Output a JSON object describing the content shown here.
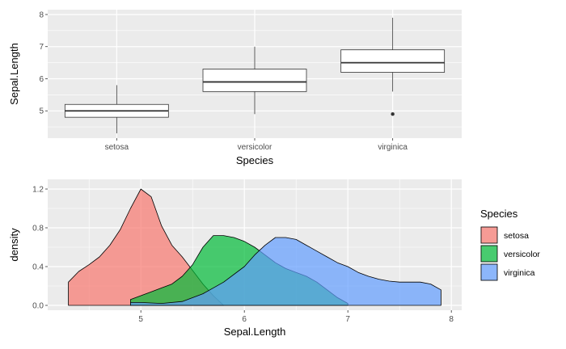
{
  "chart_data": [
    {
      "type": "boxplot",
      "xlabel": "Species",
      "ylabel": "Sepal.Length",
      "categories": [
        "setosa",
        "versicolor",
        "virginica"
      ],
      "ylim": [
        4.15,
        8.15
      ],
      "yticks": [
        5,
        6,
        7,
        8
      ],
      "grid": true,
      "boxes": [
        {
          "category": "setosa",
          "min": 4.3,
          "q1": 4.8,
          "median": 5.0,
          "q3": 5.2,
          "max": 5.8,
          "outliers": []
        },
        {
          "category": "versicolor",
          "min": 4.9,
          "q1": 5.6,
          "median": 5.9,
          "q3": 6.3,
          "max": 7.0,
          "outliers": []
        },
        {
          "category": "virginica",
          "min": 5.6,
          "q1": 6.2,
          "median": 6.5,
          "q3": 6.9,
          "max": 7.9,
          "outliers": [
            4.9
          ]
        }
      ]
    },
    {
      "type": "area",
      "xlabel": "Sepal.Length",
      "ylabel": "density",
      "xlim": [
        4.1,
        8.1
      ],
      "ylim": [
        -0.05,
        1.3
      ],
      "xticks": [
        5,
        6,
        7,
        8
      ],
      "yticks": [
        0.0,
        0.4,
        0.8,
        1.2
      ],
      "ytick_labels": [
        "0.0",
        "0.4",
        "0.8",
        "1.2"
      ],
      "grid": true,
      "legend": {
        "title": "Species",
        "position": "right"
      },
      "series": [
        {
          "name": "setosa",
          "color": "#F8766D",
          "x": [
            4.3,
            4.4,
            4.5,
            4.6,
            4.7,
            4.8,
            4.9,
            5.0,
            5.1,
            5.2,
            5.3,
            5.4,
            5.5,
            5.6,
            5.7,
            5.8
          ],
          "y": [
            0.24,
            0.35,
            0.42,
            0.5,
            0.62,
            0.78,
            1.0,
            1.2,
            1.12,
            0.82,
            0.62,
            0.5,
            0.36,
            0.22,
            0.1,
            0.0
          ]
        },
        {
          "name": "versicolor",
          "color": "#00BA38",
          "x": [
            4.9,
            5.0,
            5.1,
            5.2,
            5.3,
            5.4,
            5.5,
            5.6,
            5.7,
            5.8,
            5.9,
            6.0,
            6.1,
            6.2,
            6.3,
            6.4,
            6.5,
            6.6,
            6.7,
            6.8,
            6.9,
            7.0
          ],
          "y": [
            0.06,
            0.1,
            0.14,
            0.18,
            0.22,
            0.3,
            0.42,
            0.6,
            0.72,
            0.72,
            0.7,
            0.66,
            0.6,
            0.52,
            0.44,
            0.38,
            0.34,
            0.3,
            0.24,
            0.16,
            0.08,
            0.02
          ]
        },
        {
          "name": "virginica",
          "color": "#619CFF",
          "x": [
            4.9,
            5.0,
            5.2,
            5.4,
            5.6,
            5.8,
            6.0,
            6.1,
            6.2,
            6.3,
            6.4,
            6.5,
            6.6,
            6.7,
            6.8,
            6.9,
            7.0,
            7.1,
            7.2,
            7.3,
            7.4,
            7.5,
            7.6,
            7.7,
            7.8,
            7.9
          ],
          "y": [
            0.03,
            0.03,
            0.02,
            0.04,
            0.12,
            0.24,
            0.4,
            0.52,
            0.62,
            0.7,
            0.7,
            0.68,
            0.62,
            0.56,
            0.5,
            0.44,
            0.4,
            0.34,
            0.3,
            0.27,
            0.25,
            0.24,
            0.24,
            0.24,
            0.22,
            0.16
          ]
        }
      ]
    }
  ]
}
